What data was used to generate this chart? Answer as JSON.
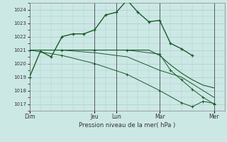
{
  "xlabel": "Pression niveau de la mer( hPa )",
  "bg_color": "#cce8e5",
  "grid_color": "#aacccc",
  "line_color": "#1a5c28",
  "ylim": [
    1016.5,
    1024.5
  ],
  "xlim": [
    0,
    18
  ],
  "day_labels": [
    "Dim",
    "Jeu",
    "Lun",
    "Mar",
    "Mer"
  ],
  "day_positions": [
    0,
    6,
    8,
    12,
    17
  ],
  "yticks": [
    1017,
    1018,
    1019,
    1020,
    1021,
    1022,
    1023,
    1024
  ],
  "series": [
    {
      "x": [
        0,
        1,
        2,
        3,
        4,
        5,
        6,
        7,
        8,
        9,
        10,
        11,
        12,
        13,
        14,
        15
      ],
      "y": [
        1019.0,
        1020.9,
        1020.5,
        1022.0,
        1022.2,
        1022.2,
        1022.5,
        1023.6,
        1023.8,
        1024.7,
        1023.8,
        1023.1,
        1023.2,
        1021.5,
        1021.1,
        1020.6
      ],
      "lw": 1.0,
      "marker": "+"
    },
    {
      "x": [
        0,
        1,
        2,
        3,
        4,
        5,
        6,
        7,
        8,
        9,
        10,
        11,
        12,
        13,
        14,
        15,
        16,
        17
      ],
      "y": [
        1021.0,
        1021.0,
        1021.0,
        1021.0,
        1021.0,
        1021.0,
        1021.0,
        1021.0,
        1021.0,
        1021.0,
        1021.0,
        1021.0,
        1020.6,
        1019.9,
        1019.3,
        1018.8,
        1018.4,
        1018.2
      ],
      "lw": 0.8,
      "marker": null
    },
    {
      "x": [
        0,
        3,
        6,
        9,
        12,
        14,
        16,
        17
      ],
      "y": [
        1021.0,
        1021.0,
        1020.8,
        1020.5,
        1019.5,
        1019.0,
        1018.0,
        1017.5
      ],
      "lw": 0.7,
      "marker": null
    },
    {
      "x": [
        0,
        3,
        6,
        9,
        12,
        13,
        14,
        15,
        16,
        17
      ],
      "y": [
        1021.0,
        1021.0,
        1021.0,
        1021.0,
        1020.7,
        1019.5,
        1018.8,
        1018.1,
        1017.5,
        1017.0
      ],
      "lw": 0.7,
      "marker": "+"
    },
    {
      "x": [
        0,
        3,
        6,
        9,
        12,
        14,
        15,
        16,
        17
      ],
      "y": [
        1021.0,
        1020.6,
        1020.0,
        1019.2,
        1018.0,
        1017.1,
        1016.8,
        1017.2,
        1017.05
      ],
      "lw": 0.7,
      "marker": "+"
    }
  ]
}
